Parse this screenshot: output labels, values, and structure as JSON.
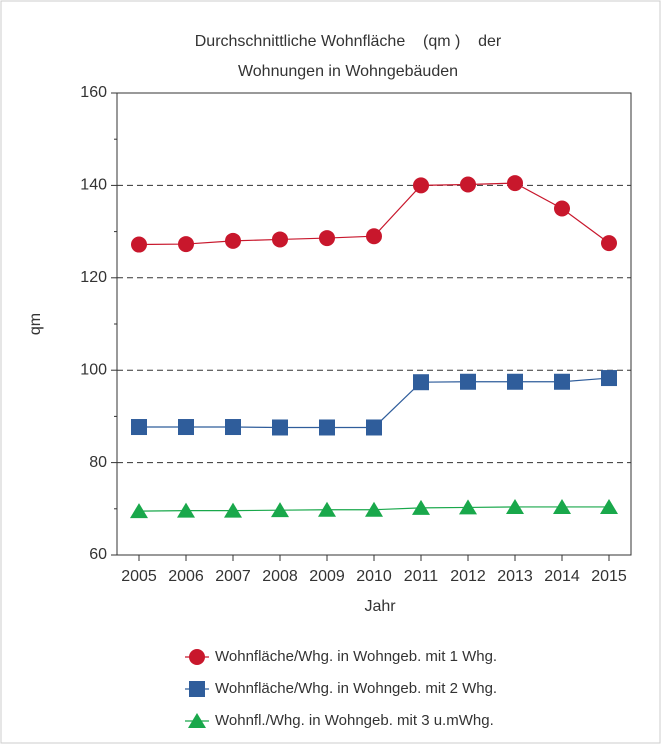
{
  "chart_data": {
    "type": "line",
    "title": [
      "Durchschnittliche Wohnfläche    (qm )    der",
      "Wohnungen in Wohngebäuden"
    ],
    "x_label": "Jahr",
    "y_label": "qm",
    "categories": [
      "2005",
      "2006",
      "2007",
      "2008",
      "2009",
      "2010",
      "2011",
      "2012",
      "2013",
      "2014",
      "2015"
    ],
    "series": [
      {
        "name": "Wohnfläche/Whg. in Wohngeb. mit 1 Whg.",
        "color": "#c8172c",
        "marker": "circle",
        "values": [
          127.2,
          127.3,
          128,
          128.3,
          128.6,
          129,
          140,
          140.2,
          140.5,
          135,
          127.5
        ]
      },
      {
        "name": "Wohnfläche/Whg. in Wohngeb. mit 2 Whg.",
        "color": "#2f5d9b",
        "marker": "square",
        "values": [
          87.7,
          87.7,
          87.7,
          87.6,
          87.6,
          87.6,
          97.4,
          97.5,
          97.5,
          97.5,
          98.3
        ]
      },
      {
        "name": "Wohnfl./Whg. in Wohngeb. mit 3 u.mWhg.",
        "color": "#19a84b",
        "marker": "triangle",
        "values": [
          69.5,
          69.6,
          69.6,
          69.7,
          69.8,
          69.8,
          70.2,
          70.3,
          70.4,
          70.4,
          70.4
        ]
      }
    ],
    "ylim": [
      60,
      160
    ],
    "yticks": [
      60,
      80,
      100,
      120,
      140,
      160
    ],
    "minor_yticks": [
      70,
      90,
      110,
      130,
      150
    ],
    "grid": true,
    "legend": "bottom"
  }
}
